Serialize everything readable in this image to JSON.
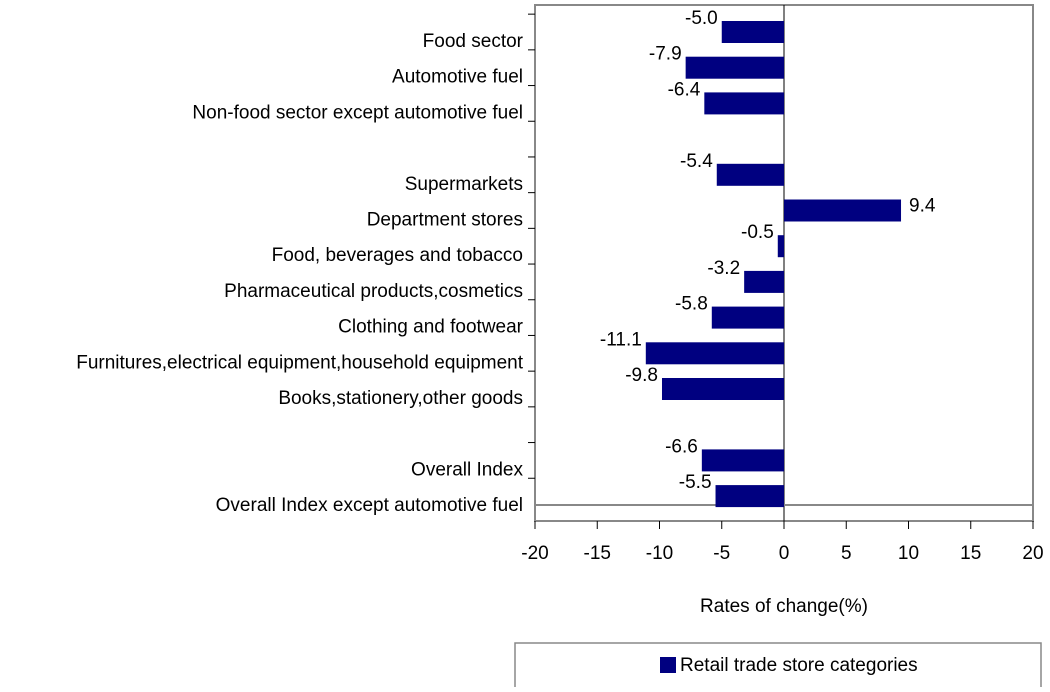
{
  "chart_data": {
    "type": "hbar",
    "categories": [
      "Food sector",
      "Automotive fuel",
      "Non-food sector except automotive fuel",
      null,
      "Supermarkets",
      "Department stores",
      "Food, beverages and tobacco",
      "Pharmaceutical products,cosmetics",
      "Clothing and footwear",
      "Furnitures,electrical equipment,household equipment",
      "Books,stationery,other goods",
      null,
      "Overall Index",
      "Overall Index except automotive fuel"
    ],
    "series": [
      {
        "name": "Retail trade store categories",
        "color": "#000080",
        "values": [
          -5.0,
          -7.9,
          -6.4,
          null,
          -5.4,
          9.4,
          -0.5,
          -3.2,
          -5.8,
          -11.1,
          -9.8,
          null,
          -6.6,
          -5.5
        ],
        "value_labels": [
          "-5.0",
          "-7.9",
          "-6.4",
          null,
          "-5.4",
          "9.4",
          "-0.5",
          "-3.2",
          "-5.8",
          "-11.1",
          "-9.8",
          null,
          "-6.6",
          "-5.5"
        ]
      }
    ],
    "xlabel": "Rates of change(%)",
    "xlim": [
      -20,
      20
    ],
    "xticks": [
      -20,
      -15,
      -10,
      -5,
      0,
      5,
      10,
      15,
      20
    ],
    "legend": "bottom-right"
  }
}
